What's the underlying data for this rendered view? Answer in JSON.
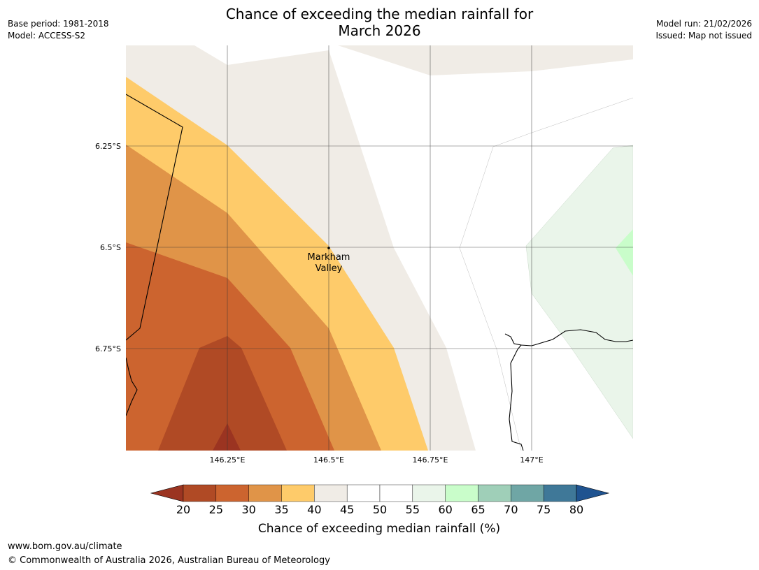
{
  "title_line1": "Chance of exceeding the median rainfall for",
  "title_line2": "March 2026",
  "meta": {
    "base_period": "Base period: 1981-2018",
    "model": "Model: ACCESS-S2",
    "model_run": "Model run: 21/02/2026",
    "issued": "Issued: Map not issued"
  },
  "map": {
    "lat_labels": [
      "6.25°S",
      "6.5°S",
      "6.75°S"
    ],
    "lon_labels": [
      "146.25°E",
      "146.5°E",
      "146.75°E",
      "147°E"
    ],
    "place": {
      "name_line1": "Markham",
      "name_line2": "Valley"
    }
  },
  "legend": {
    "tick_labels": [
      "20",
      "25",
      "30",
      "35",
      "40",
      "45",
      "50",
      "55",
      "60",
      "65",
      "70",
      "75",
      "80"
    ],
    "label": "Chance of exceeding median rainfall (%)",
    "colors": [
      "#9b3421",
      "#b04a25",
      "#cc642f",
      "#e09448",
      "#fecb6a",
      "#f0ece6",
      "#ffffff",
      "#ffffff",
      "#eaf5ea",
      "#c9fdca",
      "#9fcfb8",
      "#6fa6a5",
      "#3f7898",
      "#1f5390"
    ]
  },
  "footer": {
    "url": "www.bom.gov.au/climate",
    "copyright": "© Commonwealth of Australia 2026, Australian Bureau of Meteorology"
  }
}
